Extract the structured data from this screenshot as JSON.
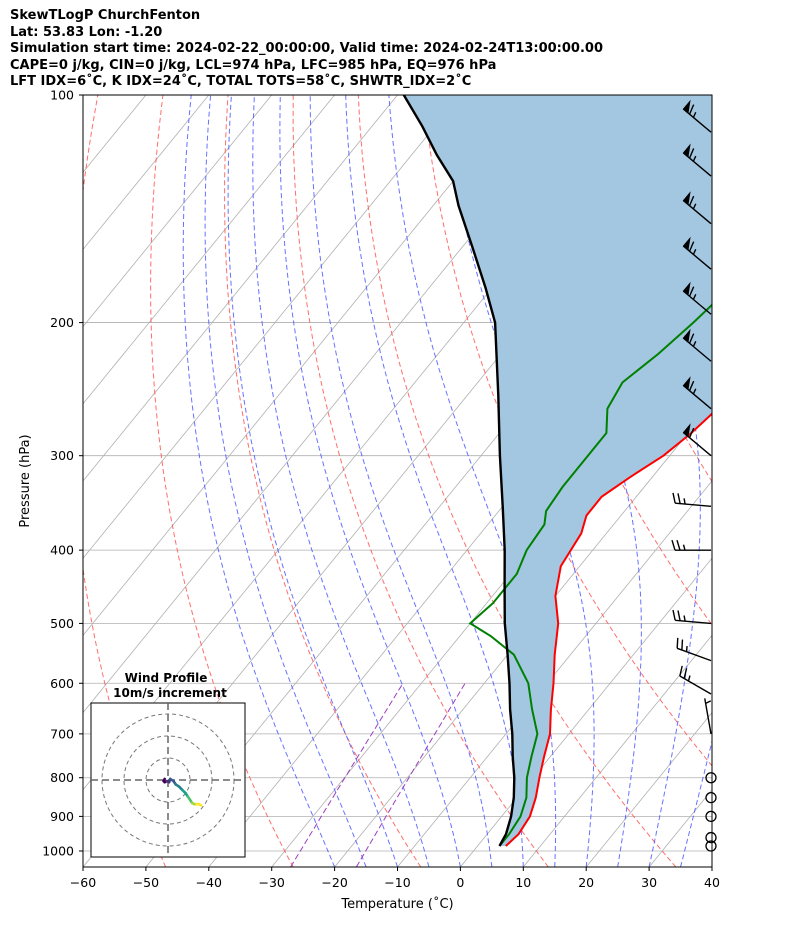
{
  "header": {
    "line1": "SkewTLogP ChurchFenton",
    "line2": "Lat: 53.83   Lon: -1.20",
    "line3": "Simulation start time: 2024-02-22_00:00:00, Valid time: 2024-02-24T13:00:00.00",
    "line4": "CAPE=0 j/kg, CIN=0 j/kg, LCL=974 hPa, LFC=985 hPa, EQ=976 hPa",
    "line5": "LFT IDX=6˚C, K IDX=24˚C, TOTAL TOTS=58˚C, SHWTR_IDX=2˚C"
  },
  "chart_data": {
    "type": "line",
    "subtype": "skew-t log-p diagram",
    "xlabel": "Temperature (˚C)",
    "ylabel": "Pressure (hPa)",
    "xlim": [
      -60,
      40
    ],
    "ylim": [
      1050,
      100
    ],
    "y_scale": "log",
    "x_ticks": [
      -60,
      -50,
      -40,
      -30,
      -20,
      -10,
      0,
      10,
      20,
      30,
      40
    ],
    "y_ticks": [
      100,
      200,
      300,
      400,
      500,
      600,
      700,
      800,
      900,
      1000
    ],
    "grid": true,
    "colors": {
      "temperature": "#ff0000",
      "dewpoint": "#008000",
      "parcel": "#000000",
      "cape_fill": "#a3c7e0",
      "dry_adiabat": "#ff5555",
      "moist_adiabat": "#4b5bff",
      "mixing_ratio": "#9b3fbf",
      "grid": "#b0b0b0"
    },
    "series": [
      {
        "name": "Temperature",
        "points": [
          [
            4.5,
            985
          ],
          [
            5,
            950
          ],
          [
            4.5,
            900
          ],
          [
            3,
            850
          ],
          [
            1,
            800
          ],
          [
            -1,
            750
          ],
          [
            -3,
            700
          ],
          [
            -6,
            650
          ],
          [
            -9,
            600
          ],
          [
            -12.5,
            550
          ],
          [
            -16,
            500
          ],
          [
            -20,
            460
          ],
          [
            -23,
            420
          ],
          [
            -24,
            380
          ],
          [
            -25.5,
            360
          ],
          [
            -25.5,
            340
          ],
          [
            -23.5,
            320
          ],
          [
            -21,
            300
          ],
          [
            -19.5,
            280
          ],
          [
            -18.5,
            260
          ],
          [
            -17,
            240
          ],
          [
            -16,
            220
          ],
          [
            -15,
            200
          ],
          [
            -14,
            180
          ],
          [
            -12.5,
            160
          ],
          [
            -11,
            145
          ],
          [
            -10.5,
            130
          ],
          [
            -10,
            120
          ],
          [
            -9,
            110
          ],
          [
            -8,
            100
          ]
        ]
      },
      {
        "name": "Dewpoint",
        "points": [
          [
            3.5,
            985
          ],
          [
            3.5,
            950
          ],
          [
            3,
            900
          ],
          [
            1.5,
            850
          ],
          [
            -1,
            800
          ],
          [
            -3,
            750
          ],
          [
            -5,
            700
          ],
          [
            -9,
            650
          ],
          [
            -13,
            600
          ],
          [
            -19,
            550
          ],
          [
            -25,
            520
          ],
          [
            -30,
            500
          ],
          [
            -29,
            470
          ],
          [
            -29,
            430
          ],
          [
            -30.5,
            400
          ],
          [
            -31,
            370
          ],
          [
            -32.5,
            355
          ],
          [
            -33,
            330
          ],
          [
            -33,
            300
          ],
          [
            -33,
            280
          ],
          [
            -36,
            260
          ],
          [
            -37,
            240
          ],
          [
            -35,
            220
          ],
          [
            -33.5,
            200
          ],
          [
            -32.5,
            185
          ],
          [
            -33,
            175
          ],
          [
            -31,
            160
          ],
          [
            -28.5,
            145
          ],
          [
            -26,
            130
          ],
          [
            -24,
            120
          ],
          [
            -21,
            110
          ],
          [
            -18,
            100
          ]
        ]
      },
      {
        "name": "Parcel",
        "points": [
          [
            3.5,
            985
          ],
          [
            3,
            950
          ],
          [
            1.5,
            900
          ],
          [
            -0.5,
            850
          ],
          [
            -3,
            800
          ],
          [
            -6,
            750
          ],
          [
            -9,
            700
          ],
          [
            -12.5,
            650
          ],
          [
            -16,
            600
          ],
          [
            -20,
            550
          ],
          [
            -24.5,
            500
          ],
          [
            -29,
            450
          ],
          [
            -34,
            400
          ],
          [
            -40,
            350
          ],
          [
            -47,
            300
          ],
          [
            -55,
            250
          ],
          [
            -65,
            200
          ],
          [
            -71,
            180
          ],
          [
            -78,
            160
          ],
          [
            -86,
            140
          ],
          [
            -90,
            130
          ],
          [
            -96,
            120
          ],
          [
            -102,
            110
          ],
          [
            -109,
            100
          ]
        ]
      }
    ],
    "winds": [
      {
        "pressure": 985,
        "speed_kt": 0
      },
      {
        "pressure": 960,
        "speed_kt": 0
      },
      {
        "pressure": 900,
        "speed_kt": 0
      },
      {
        "pressure": 850,
        "speed_kt": 0
      },
      {
        "pressure": 800,
        "speed_kt": 0
      },
      {
        "pressure": 700,
        "dir": 350,
        "speed_kt": 5
      },
      {
        "pressure": 620,
        "dir": 300,
        "speed_kt": 25
      },
      {
        "pressure": 560,
        "dir": 290,
        "speed_kt": 25
      },
      {
        "pressure": 500,
        "dir": 275,
        "speed_kt": 25
      },
      {
        "pressure": 400,
        "dir": 270,
        "speed_kt": 25
      },
      {
        "pressure": 350,
        "dir": 275,
        "speed_kt": 25
      },
      {
        "pressure": 300,
        "dir": 310,
        "speed_kt": 60
      },
      {
        "pressure": 260,
        "dir": 310,
        "speed_kt": 65
      },
      {
        "pressure": 225,
        "dir": 310,
        "speed_kt": 65
      },
      {
        "pressure": 195,
        "dir": 310,
        "speed_kt": 65
      },
      {
        "pressure": 170,
        "dir": 310,
        "speed_kt": 65
      },
      {
        "pressure": 148,
        "dir": 310,
        "speed_kt": 65
      },
      {
        "pressure": 128,
        "dir": 310,
        "speed_kt": 65
      },
      {
        "pressure": 112,
        "dir": 310,
        "speed_kt": 65
      }
    ],
    "hodograph": {
      "title": "Wind Profile",
      "subtitle": "10m/s increment",
      "rings": [
        10,
        20,
        30
      ],
      "range": 35,
      "points": [
        [
          -1.5,
          0.5
        ],
        [
          -2,
          -0.5
        ],
        [
          -1.5,
          -1
        ],
        [
          -0.5,
          -0.5
        ],
        [
          0.5,
          -1
        ],
        [
          1,
          0.5
        ],
        [
          2.5,
          -0.5
        ],
        [
          3.5,
          -2
        ],
        [
          5,
          -3
        ],
        [
          6.5,
          -4.5
        ],
        [
          8,
          -6
        ],
        [
          9,
          -7.5
        ],
        [
          10,
          -9
        ],
        [
          11,
          -10.5
        ],
        [
          12,
          -11
        ],
        [
          13,
          -11
        ],
        [
          14,
          -11
        ],
        [
          15,
          -11.5
        ]
      ]
    }
  }
}
